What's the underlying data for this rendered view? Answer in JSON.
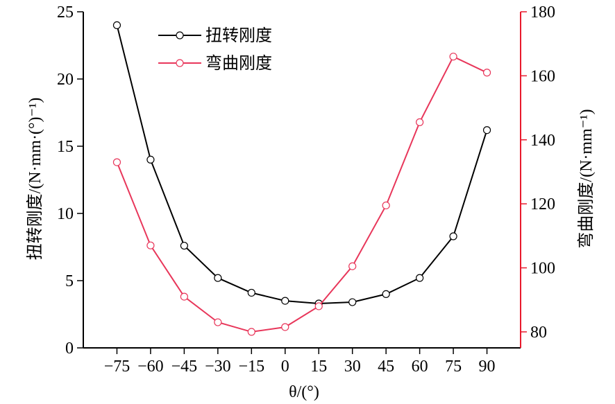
{
  "chart_data": {
    "type": "line",
    "x": [
      -75,
      -60,
      -45,
      -30,
      -15,
      0,
      15,
      30,
      45,
      60,
      75,
      90
    ],
    "x_tick_labels": [
      "−75",
      "−60",
      "−45",
      "−30",
      "−15",
      "0",
      "15",
      "30",
      "45",
      "60",
      "75",
      "90"
    ],
    "xlim": [
      -90,
      105
    ],
    "xlabel": "θ/(°)",
    "y_left": {
      "label": "扭转刚度/(N·mm·(°)⁻¹)",
      "ylim": [
        0,
        25
      ],
      "ticks": [
        0,
        5,
        10,
        15,
        20,
        25
      ],
      "color": "#000000"
    },
    "y_right": {
      "label": "弯曲刚度/(N·mm⁻¹)",
      "ylim": [
        75,
        180
      ],
      "ticks": [
        80,
        100,
        120,
        140,
        160,
        180
      ],
      "color": "#e8192c"
    },
    "series": [
      {
        "name": "扭转刚度",
        "axis": "left",
        "color": "#000000",
        "values": [
          24.0,
          14.0,
          7.6,
          5.2,
          4.1,
          3.5,
          3.3,
          3.4,
          4.0,
          5.2,
          8.3,
          16.2
        ]
      },
      {
        "name": "弯曲刚度",
        "axis": "right",
        "color": "#e8365a",
        "values": [
          133,
          107,
          91,
          83,
          80,
          81.5,
          88,
          100.5,
          119.5,
          145.5,
          166,
          161
        ]
      }
    ],
    "legend_position": "top-left",
    "grid": false
  }
}
